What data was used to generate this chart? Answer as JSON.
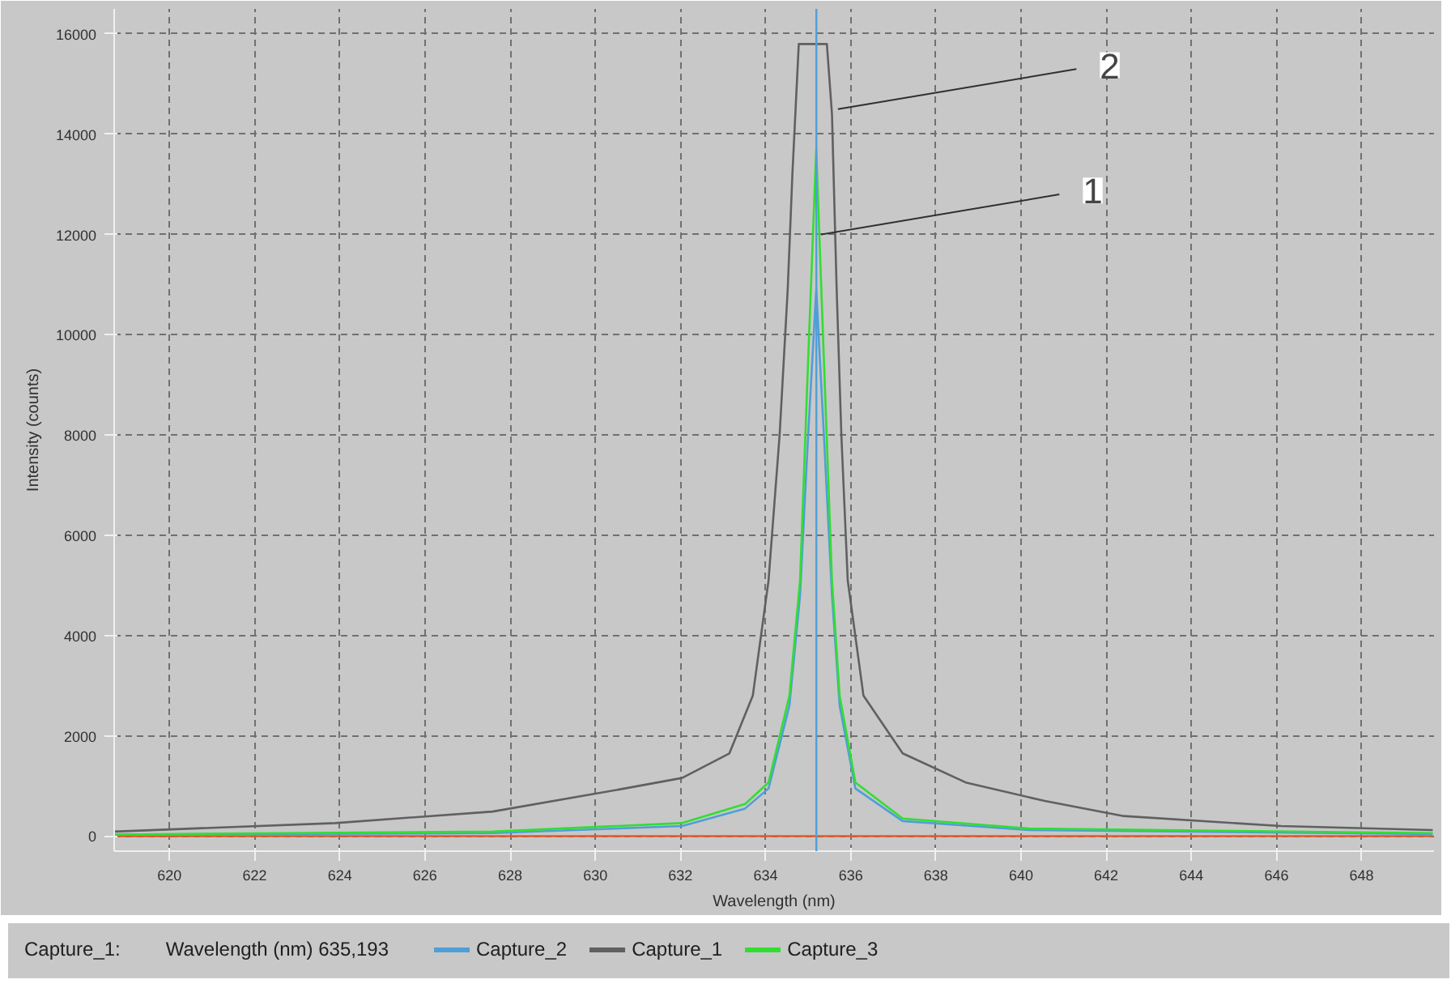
{
  "chart_data": {
    "type": "line",
    "xlabel": "Wavelength (nm)",
    "ylabel": "Intensity (counts)",
    "xlim": [
      618.7,
      649.7
    ],
    "xticks": [
      620,
      622,
      624,
      626,
      628,
      630,
      632,
      634,
      636,
      638,
      640,
      642,
      644,
      646,
      648
    ],
    "ylim": [
      -300,
      16500
    ],
    "yticks": [
      0,
      2000,
      4000,
      6000,
      8000,
      10000,
      12000,
      14000,
      16000
    ],
    "grid": true,
    "legend": "bottom",
    "marker": "none",
    "line_style": "solid",
    "series": [
      {
        "color": "#e05a2a",
        "x": [
          618.7,
          630,
          640,
          649.67
        ],
        "values": [
          0,
          0,
          0,
          0
        ]
      },
      {
        "name": "Capture_2",
        "color": "#4f9fd6",
        "x": [
          618.7,
          627.59,
          632.04,
          633.52,
          634.07,
          634.56,
          634.81,
          635.0,
          635.19,
          635.37,
          635.56,
          635.74,
          636.11,
          637.22,
          640.19,
          649.67
        ],
        "values": [
          30,
          60,
          200,
          550,
          950,
          2600,
          4800,
          8000,
          10900,
          8000,
          4800,
          2600,
          950,
          300,
          120,
          40
        ]
      },
      {
        "name": "Capture_1",
        "color": "#606060",
        "x": [
          618.7,
          623.89,
          627.59,
          630.56,
          632.04,
          633.15,
          633.7,
          634.07,
          634.33,
          634.52,
          634.63,
          634.78,
          635.44,
          635.56,
          635.67,
          635.78,
          635.93,
          636.3,
          637.22,
          638.7,
          640.56,
          642.41,
          646.11,
          649.67
        ],
        "values": [
          90,
          260,
          490,
          930,
          1160,
          1650,
          2800,
          5100,
          8000,
          10900,
          13200,
          15800,
          15800,
          14400,
          10900,
          8000,
          5100,
          2800,
          1650,
          1070,
          700,
          400,
          200,
          120
        ]
      },
      {
        "name": "Capture_3",
        "color": "#33dd33",
        "x": [
          618.7,
          627.59,
          632.04,
          633.52,
          634.07,
          634.56,
          634.81,
          635.0,
          635.19,
          635.37,
          635.56,
          635.74,
          636.11,
          637.22,
          640.19,
          649.67
        ],
        "values": [
          30,
          90,
          260,
          640,
          1070,
          2800,
          5100,
          9500,
          13700,
          9500,
          5100,
          2800,
          1070,
          350,
          150,
          60
        ]
      }
    ],
    "ref_lines": [
      {
        "axis": "x",
        "value": 635.193,
        "color": "#4f9fd6"
      }
    ],
    "annotations": [
      {
        "text": "1",
        "x": 635.3,
        "y": 12000
      },
      {
        "text": "2",
        "x": 635.7,
        "y": 14500
      },
      "Capture_1:",
      "Wavelength (nm) 635,193"
    ]
  }
}
